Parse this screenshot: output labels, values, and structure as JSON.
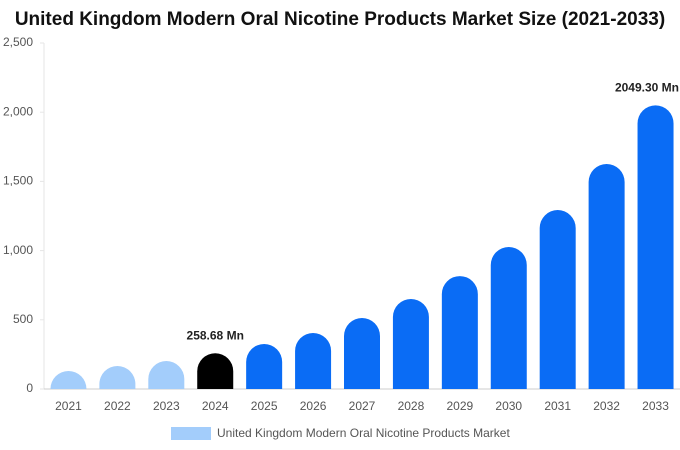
{
  "chart_data": {
    "type": "bar",
    "title": "United Kingdom Modern Oral Nicotine Products Market Size (2021-2033)",
    "categories": [
      "2021",
      "2022",
      "2023",
      "2024",
      "2025",
      "2026",
      "2027",
      "2028",
      "2029",
      "2030",
      "2031",
      "2032",
      "2033"
    ],
    "series": [
      {
        "name": "United Kingdom Modern Oral Nicotine Products Market",
        "color": "#a3cdfb",
        "values": [
          130,
          166,
          202,
          258.68,
          325,
          405,
          513,
          650,
          816,
          1026,
          1293,
          1626,
          2049.3
        ],
        "value_labels": [
          null,
          null,
          null,
          "258.68 Mn",
          null,
          null,
          null,
          null,
          null,
          null,
          null,
          null,
          "2049.30 Mn"
        ],
        "colors": [
          "#a3cdfb",
          "#a3cdfb",
          "#a3cdfb",
          "#000000",
          "#0a6cf5",
          "#0a6cf5",
          "#0a6cf5",
          "#0a6cf5",
          "#0a6cf5",
          "#0a6cf5",
          "#0a6cf5",
          "#0a6cf5",
          "#0a6cf5"
        ]
      }
    ],
    "ylim": [
      0,
      2500
    ],
    "yticks": [
      0,
      500,
      {
        "value": 1000,
        "label": "1,000"
      },
      {
        "value": 1500,
        "label": "1,500"
      },
      {
        "value": 2000,
        "label": "2,000"
      },
      {
        "value": 2500,
        "label": "2,500"
      }
    ],
    "grid": false
  }
}
